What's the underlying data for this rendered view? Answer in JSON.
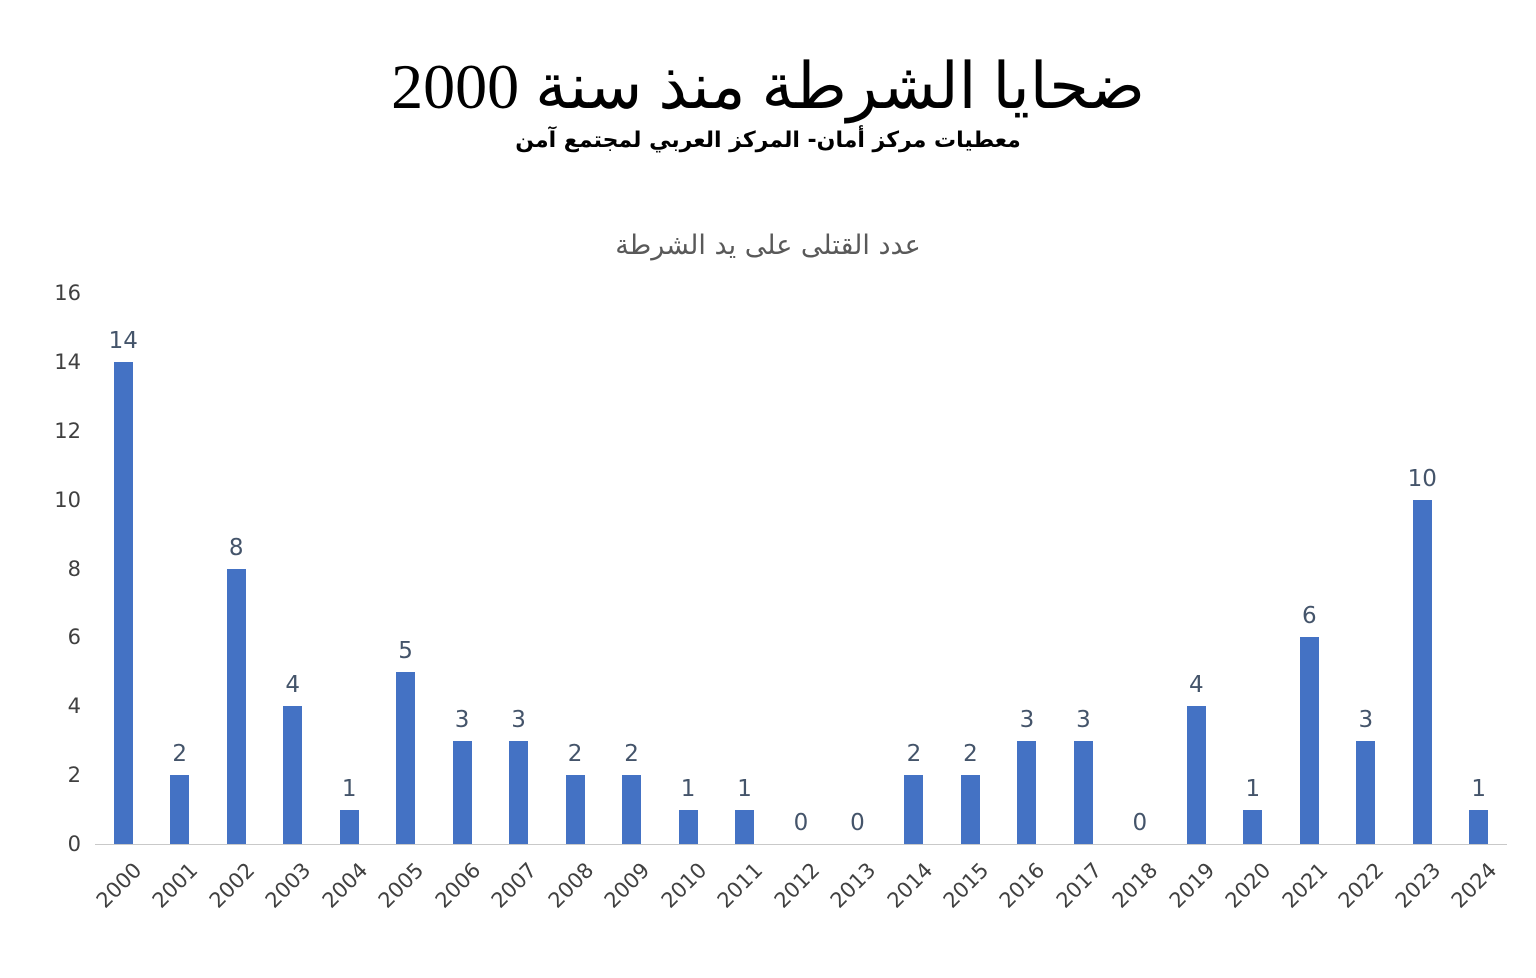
{
  "chart_data": {
    "type": "bar",
    "title": "ضحايا الشرطة منذ سنة 2000",
    "subtitle": "معطيات مركز أمان- المركز العربي لمجتمع آمن",
    "series_label": "عدد القتلى على يد الشرطة",
    "categories": [
      "2000",
      "2001",
      "2002",
      "2003",
      "2004",
      "2005",
      "2006",
      "2007",
      "2008",
      "2009",
      "2010",
      "2011",
      "2012",
      "2013",
      "2014",
      "2015",
      "2016",
      "2017",
      "2018",
      "2019",
      "2020",
      "2021",
      "2022",
      "2023",
      "2024"
    ],
    "values": [
      14,
      2,
      8,
      4,
      1,
      5,
      3,
      3,
      2,
      2,
      1,
      1,
      0,
      0,
      2,
      2,
      3,
      3,
      0,
      4,
      1,
      6,
      3,
      10,
      1
    ],
    "xlabel": "",
    "ylabel": "",
    "ylim": [
      0,
      16
    ],
    "ytick_step": 2,
    "grid": false,
    "legend_position": "top",
    "bar_color": "#4472C4",
    "value_label_color": "#44546A",
    "axis_text_color": "#404040"
  }
}
